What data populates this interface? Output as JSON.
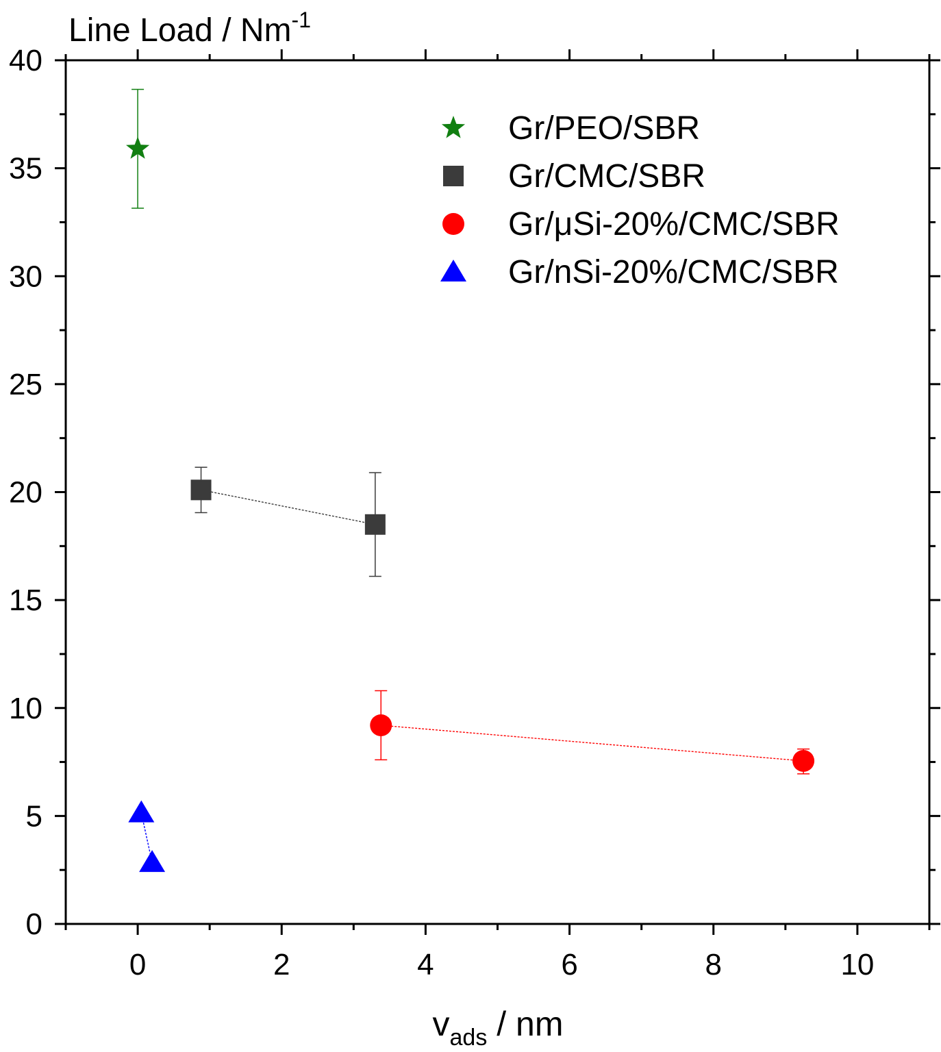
{
  "chart_data": {
    "type": "scatter",
    "ylabel_main": "Line Load / Nm",
    "ylabel_sup": "-1",
    "xlabel_main": "v",
    "xlabel_sub": "ads",
    "xlabel_tail": " / nm",
    "xlim": [
      -1,
      11
    ],
    "ylim": [
      0,
      40
    ],
    "x_ticks": [
      0,
      2,
      4,
      6,
      8,
      10
    ],
    "y_ticks": [
      0,
      5,
      10,
      15,
      20,
      25,
      30,
      35,
      40
    ],
    "legend_position": "top-right",
    "series": [
      {
        "name": "Gr/PEO/SBR",
        "marker": "star",
        "color": "#117f11",
        "connected": false,
        "points": [
          {
            "x": 0.0,
            "y": 35.9,
            "err_low": 33.15,
            "err_high": 38.65
          }
        ]
      },
      {
        "name": "Gr/CMC/SBR",
        "marker": "square",
        "color": "#3b3b3b",
        "connected": true,
        "points": [
          {
            "x": 0.88,
            "y": 20.1,
            "err_low": 19.05,
            "err_high": 21.15
          },
          {
            "x": 3.3,
            "y": 18.5,
            "err_low": 16.1,
            "err_high": 20.9
          }
        ]
      },
      {
        "name": "Gr/μSi-20%/CMC/SBR",
        "marker": "circle",
        "color": "#ff0000",
        "connected": true,
        "points": [
          {
            "x": 3.38,
            "y": 9.2,
            "err_low": 7.6,
            "err_high": 10.8
          },
          {
            "x": 9.25,
            "y": 7.55,
            "err_low": 6.95,
            "err_high": 8.1
          }
        ]
      },
      {
        "name": "Gr/nSi-20%/CMC/SBR",
        "marker": "triangle",
        "color": "#0000ff",
        "connected": true,
        "points": [
          {
            "x": 0.05,
            "y": 5.15,
            "err_low": null,
            "err_high": null
          },
          {
            "x": 0.2,
            "y": 2.85,
            "err_low": null,
            "err_high": null
          }
        ]
      }
    ]
  }
}
